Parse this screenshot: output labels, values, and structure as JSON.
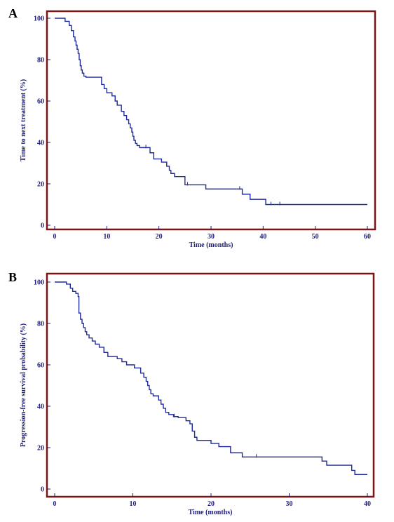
{
  "panels": [
    {
      "letter": "A"
    },
    {
      "letter": "B"
    }
  ],
  "colors": {
    "line": "#1f2a9b",
    "frame": "#7a1515",
    "text": "#1f1f7a"
  },
  "chart_data": [
    {
      "type": "line",
      "step": true,
      "xlabel": "Time (months)",
      "ylabel": "Time to next treatment (%)",
      "xlim": [
        0,
        60
      ],
      "ylim": [
        0,
        100
      ],
      "xticks": [
        0,
        10,
        20,
        30,
        40,
        50,
        60
      ],
      "yticks": [
        0,
        20,
        40,
        60,
        80,
        100
      ],
      "grid": false,
      "series": [
        {
          "x": [
            0,
            2,
            2.8,
            3.2,
            3.6,
            3.9,
            4.1,
            4.3,
            4.5,
            4.7,
            4.9,
            5.1,
            5.3,
            5.6,
            6,
            6.5,
            9,
            9.5,
            10,
            11,
            11.6,
            12,
            12.8,
            13.3,
            13.8,
            14.2,
            14.5,
            14.8,
            15,
            15.2,
            15.5,
            15.8,
            16.3,
            16.8,
            18.3,
            19,
            20.5,
            21.5,
            22,
            22.3,
            23,
            25,
            29,
            36,
            37.5,
            40.5,
            60
          ],
          "y": [
            100,
            98.5,
            96.5,
            94,
            91,
            89,
            87,
            85,
            83,
            80,
            77,
            75,
            73.5,
            72,
            71.5,
            71.5,
            68,
            66,
            64,
            62.5,
            60,
            58,
            55,
            53,
            51,
            49,
            47,
            45,
            43,
            41,
            39.5,
            38.5,
            37.5,
            37.5,
            35,
            32,
            30.5,
            28.5,
            26.5,
            25,
            23.5,
            19.5,
            17.5,
            15,
            12.5,
            10,
            10
          ]
        }
      ],
      "censored": [
        {
          "x": 35.5,
          "y": 17.5
        },
        {
          "x": 41.5,
          "y": 10
        },
        {
          "x": 43.2,
          "y": 10
        },
        {
          "x": 25.5,
          "y": 19.5
        },
        {
          "x": 17.5,
          "y": 37.5
        }
      ]
    },
    {
      "type": "line",
      "step": true,
      "xlabel": "Time (months)",
      "ylabel": "Progression-free survival probability (%)",
      "xlim": [
        0,
        40
      ],
      "ylim": [
        0,
        100
      ],
      "xticks": [
        0,
        10,
        20,
        30,
        40
      ],
      "yticks": [
        0,
        20,
        40,
        60,
        80,
        100
      ],
      "grid": false,
      "series": [
        {
          "x": [
            0,
            1.5,
            2,
            2.3,
            2.7,
            3,
            3.1,
            3.3,
            3.5,
            3.7,
            3.9,
            4.1,
            4.4,
            4.8,
            5.2,
            5.7,
            6.3,
            6.8,
            8,
            8.6,
            9.2,
            10.2,
            11,
            11.4,
            11.7,
            11.9,
            12.1,
            12.3,
            12.6,
            13.3,
            13.6,
            13.9,
            14.2,
            14.6,
            15.2,
            15.8,
            16.8,
            17.3,
            17.6,
            17.9,
            18.2,
            18.5,
            20,
            21,
            22.5,
            24,
            34.2,
            34.8,
            38,
            38.4,
            40
          ],
          "y": [
            100,
            99,
            97,
            95.5,
            94.5,
            93,
            85,
            82,
            80,
            78,
            76,
            74.5,
            73,
            71.5,
            70,
            68.5,
            66,
            64,
            63,
            61.5,
            60,
            58.5,
            56,
            54,
            52,
            50,
            48,
            46,
            45,
            43,
            41,
            39,
            37,
            36,
            35,
            34.5,
            33,
            31.5,
            28,
            25,
            23.5,
            23.5,
            22,
            20.5,
            17.5,
            15.5,
            13.5,
            11.5,
            9,
            7,
            7
          ]
        }
      ],
      "censored": [
        {
          "x": 25.8,
          "y": 15.5
        },
        {
          "x": 15.3,
          "y": 35
        }
      ]
    }
  ]
}
